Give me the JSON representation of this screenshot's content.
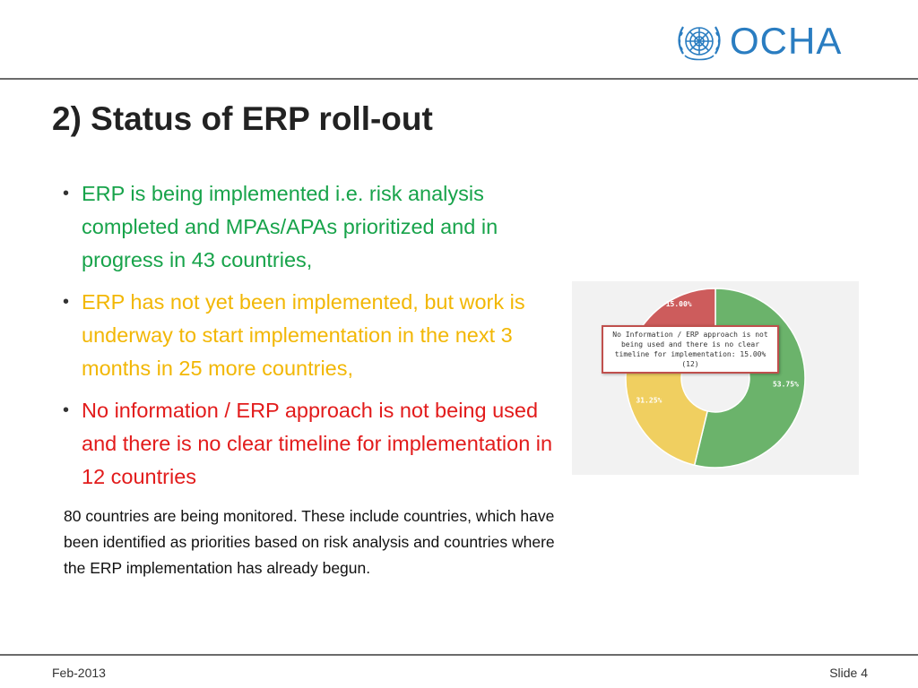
{
  "header": {
    "logo_text": "OCHA"
  },
  "title": "2) Status of ERP roll-out",
  "bullets": [
    {
      "text": "ERP is being implemented i.e. risk analysis completed and MPAs/APAs prioritized and in progress in 43 countries,",
      "color": "#17a34a"
    },
    {
      "text": "ERP has not yet been implemented, but work is underway to start implementation in the next 3 months in 25 more countries,",
      "color": "#f2b705"
    },
    {
      "text": "No information / ERP approach is not being used and there is no clear timeline for implementation in 12 countries",
      "color": "#e21b1b"
    }
  ],
  "note": "80 countries are being monitored. These include countries, which have been identified as priorities based on risk analysis and countries where the ERP implementation has already begun.",
  "chart_data": {
    "type": "pie",
    "donut": true,
    "slices": [
      {
        "label": "53.75%",
        "value": 53.75,
        "color": "#6bb36b"
      },
      {
        "label": "31.25%",
        "value": 31.25,
        "color": "#f0cf60"
      },
      {
        "label": "15.00%",
        "value": 15.0,
        "color": "#cd5c5c"
      }
    ],
    "tooltip": {
      "lines": [
        "No Information / ERP approach is not",
        "being used and there is no clear",
        "timeline for implementation: 15.00%",
        "(12)"
      ]
    }
  },
  "footer": {
    "date": "Feb-2013",
    "slide": "Slide 4"
  }
}
